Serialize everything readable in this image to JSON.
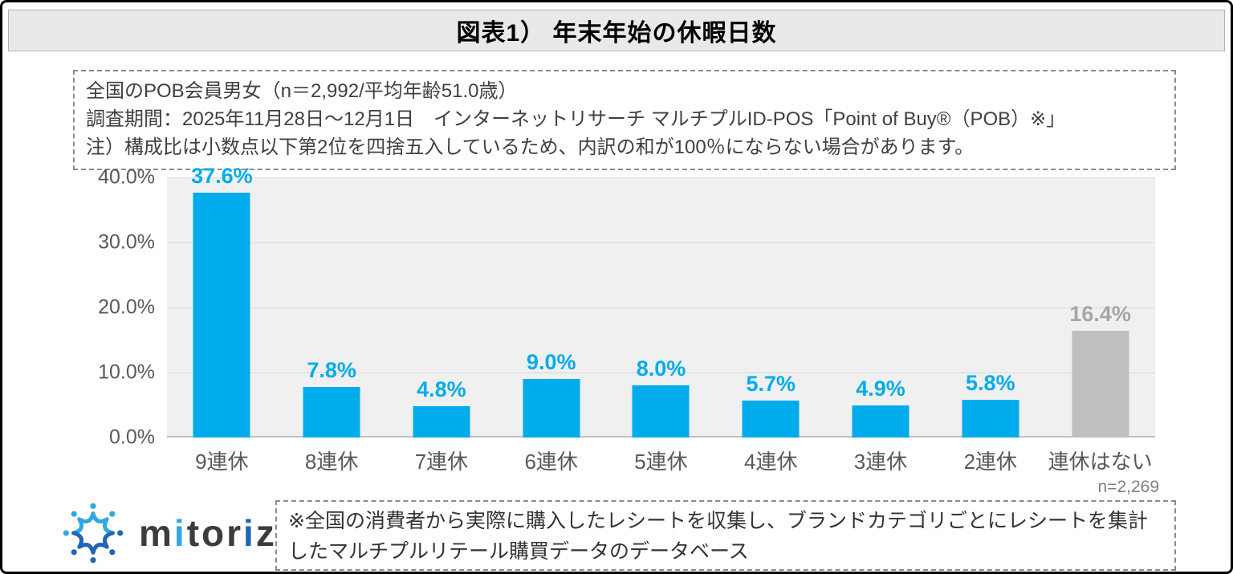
{
  "frame": {
    "title": "図表1） 年末年始の休暇日数"
  },
  "info_box": {
    "lines": [
      "全国のPOB会員男女（n＝2,992/平均年齢51.0歳）",
      "調査期間：2025年11月28日～12月1日　インターネットリサーチ マルチプルID-POS「Point of Buy®（POB）※」",
      "注）構成比は小数点以下第2位を四捨五入しているため、内訳の和が100％にならない場合があります。"
    ]
  },
  "chart_data": {
    "type": "bar",
    "title": "年末年始の休暇日数",
    "categories": [
      "9連休",
      "8連休",
      "7連休",
      "6連休",
      "5連休",
      "4連休",
      "3連休",
      "2連休",
      "連休はない"
    ],
    "values": [
      37.6,
      7.8,
      4.8,
      9.0,
      8.0,
      5.7,
      4.9,
      5.8,
      16.4
    ],
    "value_labels": [
      "37.6%",
      "7.8%",
      "4.8%",
      "9.0%",
      "8.0%",
      "5.7%",
      "4.9%",
      "5.8%",
      "16.4%"
    ],
    "bar_colors": [
      "#00acec",
      "#00acec",
      "#00acec",
      "#00acec",
      "#00acec",
      "#00acec",
      "#00acec",
      "#00acec",
      "#bfbfbf"
    ],
    "label_colors": [
      "#00acec",
      "#00acec",
      "#00acec",
      "#00acec",
      "#00acec",
      "#00acec",
      "#00acec",
      "#00acec",
      "#a6a6a6"
    ],
    "xlabel": "",
    "ylabel": "",
    "ylim": [
      0,
      40
    ],
    "yticks": [
      "40.0%",
      "30.0%",
      "20.0%",
      "10.0%",
      "0.0%"
    ],
    "grid": true,
    "legend": false,
    "sample_note": "n=2,269"
  },
  "footer": {
    "logo_text": "mitoriz",
    "logo_letter_colors": {
      "1": "#2fa8e1",
      "5": "#2265b8"
    },
    "note": "※全国の消費者から実際に購入したレシートを収集し、ブランドカテゴリごとにレシートを集計したマルチプルリテール購買データのデータベース"
  },
  "colors": {
    "bar_blue": "#00acec",
    "bar_gray": "#bfbfbf",
    "gray_label": "#a6a6a6",
    "plot_background": "#f0f0f0",
    "gridline": "#d9d9d9",
    "title_bar_background": "#e9e9e9",
    "logo_light_blue": "#2fa8e1",
    "logo_dark_blue": "#2265b8"
  }
}
